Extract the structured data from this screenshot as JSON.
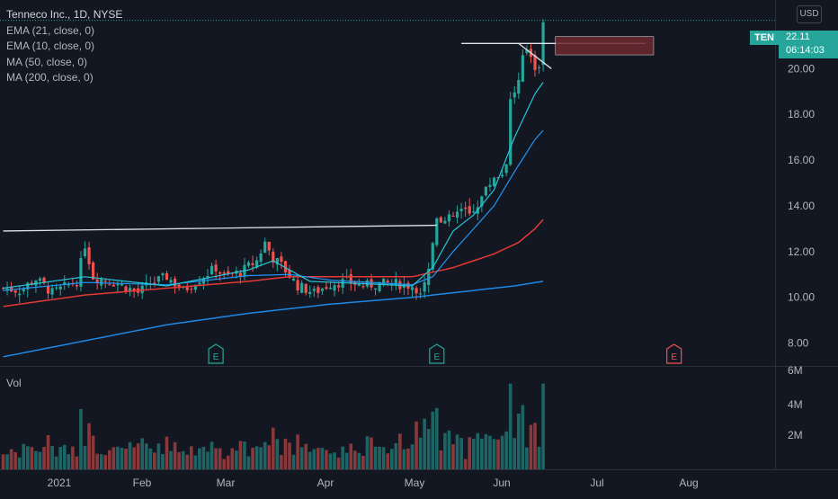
{
  "header": {
    "title": "Tenneco Inc., 1D, NYSE",
    "indicators": [
      "EMA (21, close, 0)",
      "EMA (10, close, 0)",
      "MA (50, close, 0)",
      "MA (200, close, 0)"
    ],
    "currency": "USD"
  },
  "volume_pane": {
    "label": "Vol"
  },
  "last_price": {
    "symbol": "TEN",
    "price": "22.11",
    "countdown": "06:14:03"
  },
  "colors": {
    "background": "#131722",
    "up": "#26a69a",
    "down": "#ef5350",
    "ema21": "#2196f3",
    "ema10": "#26c6da",
    "ma50": "#e53935",
    "ma200": "#1e88e5",
    "earnings_past": "#26a69a",
    "earnings_future": "#ef5350"
  },
  "chart_data": {
    "type": "candlestick",
    "price_axis": {
      "ticks": [
        "20.00",
        "18.00",
        "16.00",
        "14.00",
        "12.00",
        "10.00",
        "8.00"
      ],
      "range": [
        7.0,
        23.0
      ]
    },
    "volume_axis": {
      "ticks": [
        "6M",
        "4M",
        "2M"
      ]
    },
    "x_axis": {
      "labels": [
        "2021",
        "Feb",
        "Mar",
        "Apr",
        "May",
        "Jun",
        "Jul",
        "Aug"
      ]
    },
    "series_trend": {
      "price_keypoints": [
        [
          0,
          10.4
        ],
        [
          4,
          10.3
        ],
        [
          8,
          10.8
        ],
        [
          12,
          10.2
        ],
        [
          18,
          10.7
        ],
        [
          20,
          12.3
        ],
        [
          22,
          10.9
        ],
        [
          28,
          10.6
        ],
        [
          33,
          10.2
        ],
        [
          36,
          10.6
        ],
        [
          40,
          10.9
        ],
        [
          44,
          10.3
        ],
        [
          48,
          10.8
        ],
        [
          52,
          11.3
        ],
        [
          54,
          10.9
        ],
        [
          58,
          11.1
        ],
        [
          62,
          11.6
        ],
        [
          64,
          12.4
        ],
        [
          66,
          11.7
        ],
        [
          68,
          11.4
        ],
        [
          72,
          10.5
        ],
        [
          76,
          10.2
        ],
        [
          80,
          10.6
        ],
        [
          84,
          10.7
        ],
        [
          88,
          10.5
        ],
        [
          92,
          10.6
        ],
        [
          96,
          10.6
        ],
        [
          100,
          10.5
        ],
        [
          102,
          10.3
        ],
        [
          104,
          11.2
        ],
        [
          106,
          13.6
        ],
        [
          108,
          13.3
        ],
        [
          112,
          13.8
        ],
        [
          114,
          13.6
        ],
        [
          116,
          14.1
        ],
        [
          118,
          14.7
        ],
        [
          120,
          15.3
        ],
        [
          122,
          15.4
        ],
        [
          123,
          16.0
        ],
        [
          124,
          18.6
        ],
        [
          126,
          19.4
        ],
        [
          127,
          20.4
        ],
        [
          128,
          20.9
        ],
        [
          129,
          20.6
        ],
        [
          130,
          20.1
        ],
        [
          131,
          20.2
        ],
        [
          132,
          21.9
        ]
      ],
      "ema21": [
        [
          0,
          10.3
        ],
        [
          20,
          10.65
        ],
        [
          40,
          10.55
        ],
        [
          60,
          10.95
        ],
        [
          70,
          11.0
        ],
        [
          80,
          10.75
        ],
        [
          100,
          10.55
        ],
        [
          105,
          10.9
        ],
        [
          110,
          12.0
        ],
        [
          115,
          13.0
        ],
        [
          120,
          14.0
        ],
        [
          125,
          15.5
        ],
        [
          130,
          16.9
        ],
        [
          132,
          17.3
        ]
      ],
      "ema10": [
        [
          0,
          10.4
        ],
        [
          20,
          10.9
        ],
        [
          40,
          10.5
        ],
        [
          60,
          11.2
        ],
        [
          66,
          11.6
        ],
        [
          75,
          10.7
        ],
        [
          100,
          10.5
        ],
        [
          105,
          11.3
        ],
        [
          110,
          12.9
        ],
        [
          115,
          13.6
        ],
        [
          120,
          14.7
        ],
        [
          125,
          17.0
        ],
        [
          130,
          18.9
        ],
        [
          132,
          19.4
        ]
      ],
      "ma50": [
        [
          0,
          9.6
        ],
        [
          20,
          10.1
        ],
        [
          40,
          10.4
        ],
        [
          60,
          10.7
        ],
        [
          70,
          10.9
        ],
        [
          80,
          10.9
        ],
        [
          100,
          10.9
        ],
        [
          110,
          11.3
        ],
        [
          120,
          11.9
        ],
        [
          126,
          12.4
        ],
        [
          130,
          13.0
        ],
        [
          132,
          13.4
        ]
      ],
      "ma200": [
        [
          0,
          7.4
        ],
        [
          20,
          8.1
        ],
        [
          40,
          8.8
        ],
        [
          60,
          9.3
        ],
        [
          80,
          9.7
        ],
        [
          100,
          10.0
        ],
        [
          115,
          10.3
        ],
        [
          125,
          10.5
        ],
        [
          132,
          10.7
        ]
      ]
    },
    "drawings": {
      "resistance_lines": [
        {
          "x": [
            0,
            106
          ],
          "y": [
            12.9,
            13.15
          ]
        },
        {
          "x": [
            112,
            157
          ],
          "y": [
            21.1,
            21.1
          ]
        }
      ],
      "wedge_line": {
        "x": [
          126,
          134
        ],
        "y": [
          21.1,
          20.0
        ]
      },
      "target_box": {
        "x": [
          135,
          159
        ],
        "y": [
          20.6,
          21.4
        ]
      }
    },
    "earnings_markers": [
      {
        "x": 52,
        "label": "E",
        "past": true
      },
      {
        "x": 106,
        "label": "E",
        "past": true
      },
      {
        "x": 164,
        "label": "E",
        "past": false
      }
    ]
  }
}
